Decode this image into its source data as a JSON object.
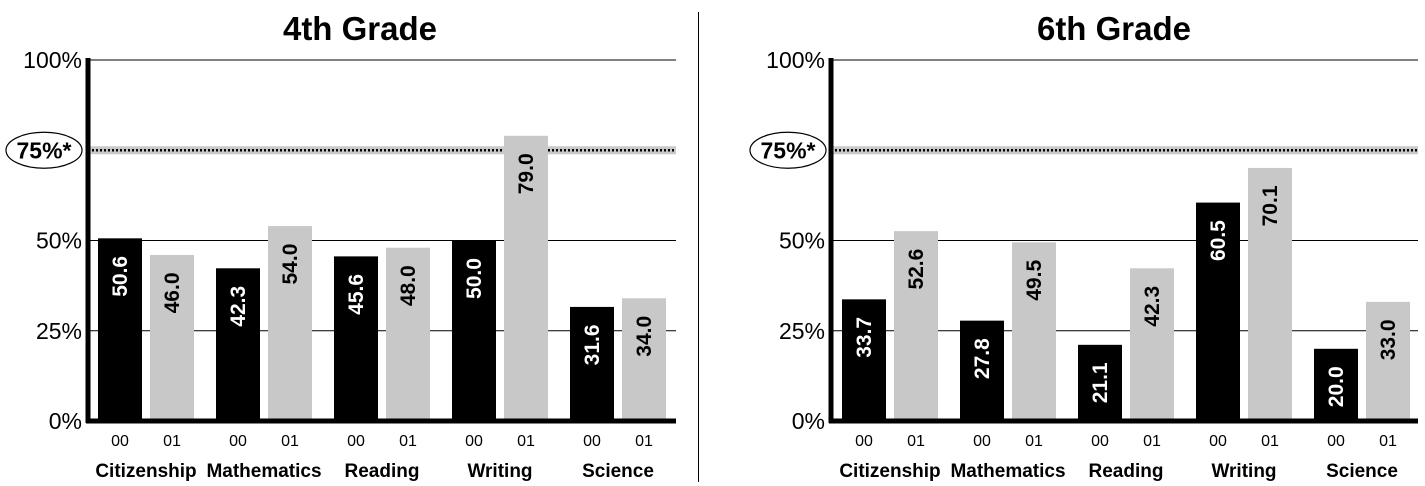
{
  "chart_data": [
    {
      "type": "bar",
      "title": "4th Grade",
      "categories": [
        "Citizenship",
        "Mathematics",
        "Reading",
        "Writing",
        "Science"
      ],
      "series": [
        {
          "name": "00",
          "values": [
            50.6,
            42.3,
            45.6,
            50.0,
            31.6
          ],
          "color": "#000000"
        },
        {
          "name": "01",
          "values": [
            46.0,
            54.0,
            48.0,
            79.0,
            34.0
          ],
          "color": "#c8c8c8"
        }
      ],
      "value_labels": {
        "00": [
          "50.6",
          "42.3",
          "45.6",
          "50.0",
          "31.6"
        ],
        "01": [
          "46.0",
          "54.0",
          "48.0",
          "79.0",
          "34.0"
        ]
      },
      "ylim": [
        0,
        100
      ],
      "yticks": [
        {
          "value": 0,
          "label": "0%"
        },
        {
          "value": 25,
          "label": "25%"
        },
        {
          "value": 50,
          "label": "50%"
        },
        {
          "value": 100,
          "label": "100%"
        }
      ],
      "reference_line": {
        "value": 75,
        "label": "75%*"
      },
      "grid": true
    },
    {
      "type": "bar",
      "title": "6th Grade",
      "categories": [
        "Citizenship",
        "Mathematics",
        "Reading",
        "Writing",
        "Science"
      ],
      "series": [
        {
          "name": "00",
          "values": [
            33.7,
            27.8,
            21.1,
            60.5,
            20.0
          ],
          "color": "#000000"
        },
        {
          "name": "01",
          "values": [
            52.6,
            49.5,
            42.3,
            70.1,
            33.0
          ],
          "color": "#c8c8c8"
        }
      ],
      "value_labels": {
        "00": [
          "33.7",
          "27.8",
          "21.1",
          "60.5",
          "20.0"
        ],
        "01": [
          "52.6",
          "49.5",
          "42.3",
          "70.1",
          "33.0"
        ]
      },
      "ylim": [
        0,
        100
      ],
      "yticks": [
        {
          "value": 0,
          "label": "0%"
        },
        {
          "value": 25,
          "label": "25%"
        },
        {
          "value": 50,
          "label": "50%"
        },
        {
          "value": 100,
          "label": "100%"
        }
      ],
      "reference_line": {
        "value": 75,
        "label": "75%*"
      },
      "grid": true
    }
  ]
}
